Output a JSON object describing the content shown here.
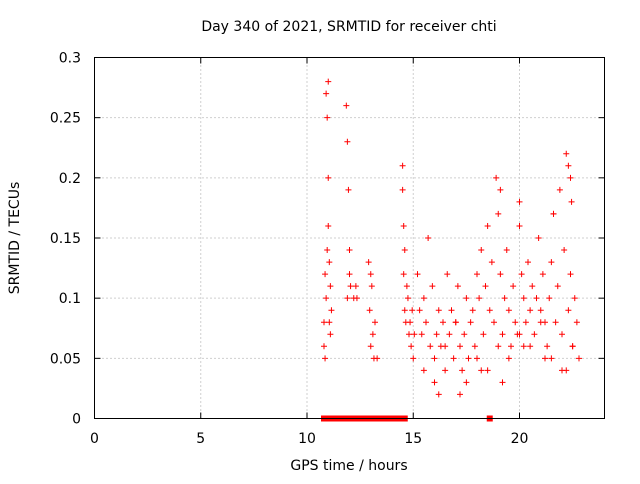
{
  "chart_data": {
    "type": "scatter",
    "title": "Day 340 of 2021, SRMTID for receiver chti",
    "xlabel": "GPS time / hours",
    "ylabel": "SRMTID / TECUs",
    "xlim": [
      0,
      24
    ],
    "ylim": [
      0,
      0.3
    ],
    "xticks": [
      "0",
      "5",
      "10",
      "15",
      "20"
    ],
    "yticks": [
      "0",
      "0.05",
      "0.1",
      "0.15",
      "0.2",
      "0.25",
      "0.3"
    ],
    "grid": true,
    "legend": "none",
    "series_color": "#ff0000",
    "series": [
      {
        "name": "SRMTID",
        "marker": "plus",
        "x": [
          10.8,
          10.8,
          10.85,
          10.85,
          10.9,
          10.9,
          10.95,
          10.95,
          11.0,
          11.0,
          11.0,
          11.05,
          11.05,
          11.1,
          11.1,
          11.15,
          11.85,
          11.9,
          11.9,
          11.95,
          12.0,
          12.0,
          12.05,
          12.2,
          12.3,
          12.35,
          12.9,
          12.95,
          13.0,
          13.0,
          13.05,
          13.1,
          13.15,
          13.2,
          13.3,
          14.5,
          14.5,
          14.55,
          14.55,
          14.6,
          14.6,
          14.65,
          14.7,
          14.75,
          14.8,
          14.85,
          14.9,
          14.95,
          15.0,
          15.05,
          15.2,
          15.3,
          15.4,
          15.5,
          15.6,
          15.7,
          15.8,
          15.9,
          16.0,
          16.1,
          16.2,
          16.3,
          16.4,
          16.5,
          16.6,
          16.7,
          16.8,
          16.9,
          17.0,
          17.1,
          17.2,
          17.3,
          17.4,
          17.5,
          17.6,
          17.7,
          17.8,
          17.9,
          18.0,
          18.1,
          18.2,
          18.3,
          18.4,
          18.5,
          18.6,
          18.7,
          18.8,
          18.9,
          19.0,
          19.1,
          19.2,
          19.3,
          19.4,
          19.5,
          19.6,
          19.7,
          19.8,
          19.9,
          20.0,
          20.1,
          20.2,
          20.3,
          20.4,
          20.5,
          20.6,
          20.7,
          20.8,
          20.9,
          21.0,
          21.1,
          21.2,
          21.3,
          21.4,
          21.5,
          21.6,
          21.7,
          21.8,
          21.9,
          22.0,
          22.1,
          22.2,
          22.3,
          22.4,
          22.5,
          22.6,
          22.7,
          22.8,
          16.0,
          16.5,
          17.0,
          17.5,
          18.0,
          18.5,
          19.0,
          19.5,
          20.0,
          20.5,
          21.0,
          21.5,
          22.0,
          22.5,
          15.5,
          16.2,
          17.2,
          18.2,
          19.2,
          20.2,
          21.2,
          22.2,
          19.1,
          20.0,
          21.6,
          22.3,
          22.4,
          22.45,
          10.8,
          11.0,
          11.2,
          11.4,
          11.6,
          11.8,
          12.0,
          12.2,
          12.4,
          12.6,
          12.8,
          13.0,
          13.2,
          13.4,
          13.6,
          13.8,
          14.0,
          14.2,
          14.4,
          14.6,
          18.6
        ],
        "y": [
          0.08,
          0.06,
          0.12,
          0.05,
          0.27,
          0.1,
          0.25,
          0.14,
          0.28,
          0.2,
          0.16,
          0.13,
          0.08,
          0.11,
          0.07,
          0.09,
          0.26,
          0.23,
          0.1,
          0.19,
          0.12,
          0.14,
          0.11,
          0.1,
          0.11,
          0.1,
          0.13,
          0.09,
          0.12,
          0.06,
          0.11,
          0.07,
          0.05,
          0.08,
          0.05,
          0.21,
          0.19,
          0.16,
          0.12,
          0.14,
          0.09,
          0.08,
          0.11,
          0.1,
          0.07,
          0.08,
          0.06,
          0.09,
          0.05,
          0.07,
          0.12,
          0.09,
          0.07,
          0.1,
          0.08,
          0.15,
          0.06,
          0.11,
          0.05,
          0.07,
          0.09,
          0.06,
          0.08,
          0.04,
          0.12,
          0.07,
          0.09,
          0.05,
          0.08,
          0.11,
          0.06,
          0.04,
          0.07,
          0.1,
          0.05,
          0.08,
          0.09,
          0.06,
          0.12,
          0.1,
          0.14,
          0.07,
          0.11,
          0.16,
          0.09,
          0.13,
          0.08,
          0.2,
          0.17,
          0.12,
          0.07,
          0.1,
          0.14,
          0.09,
          0.06,
          0.11,
          0.08,
          0.07,
          0.18,
          0.12,
          0.1,
          0.08,
          0.13,
          0.09,
          0.11,
          0.07,
          0.1,
          0.15,
          0.09,
          0.12,
          0.08,
          0.06,
          0.1,
          0.13,
          0.17,
          0.08,
          0.11,
          0.19,
          0.07,
          0.14,
          0.22,
          0.09,
          0.12,
          0.06,
          0.1,
          0.08,
          0.05,
          0.03,
          0.06,
          0.08,
          0.03,
          0.05,
          0.04,
          0.06,
          0.05,
          0.07,
          0.06,
          0.08,
          0.05,
          0.04,
          0.06,
          0.04,
          0.02,
          0.02,
          0.04,
          0.03,
          0.06,
          0.05,
          0.04,
          0.19,
          0.16,
          0.17,
          0.21,
          0.2,
          0.18,
          0,
          0,
          0,
          0,
          0,
          0,
          0,
          0,
          0,
          0,
          0,
          0,
          0,
          0,
          0,
          0,
          0,
          0,
          0,
          0,
          0
        ]
      }
    ]
  }
}
